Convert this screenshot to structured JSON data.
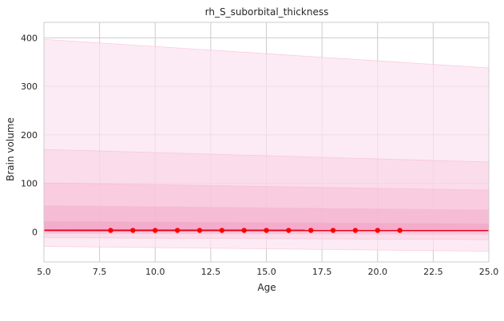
{
  "chart_data": {
    "type": "line",
    "title": "rh_S_suborbital_thickness",
    "xlabel": "Age",
    "ylabel": "Brain volume",
    "xlim": [
      5,
      25
    ],
    "ylim": [
      -62,
      432
    ],
    "grid": true,
    "legend": "none",
    "x_ticks": [
      5.0,
      7.5,
      10.0,
      12.5,
      15.0,
      17.5,
      20.0,
      22.5,
      25.0
    ],
    "x_tick_labels": [
      "5.0",
      "7.5",
      "10.0",
      "12.5",
      "15.0",
      "17.5",
      "20.0",
      "22.5",
      "25.0"
    ],
    "y_ticks": [
      0,
      100,
      200,
      300,
      400
    ],
    "y_tick_labels": [
      "0",
      "100",
      "200",
      "300",
      "400"
    ],
    "bands": [
      {
        "x": [
          5,
          25
        ],
        "lower": [
          -30,
          -40
        ],
        "upper": [
          397,
          338
        ],
        "color": "#fbe3ef",
        "opacity": 0.7
      },
      {
        "x": [
          5,
          25
        ],
        "lower": [
          -12,
          -16
        ],
        "upper": [
          170,
          144
        ],
        "color": "#f9cfe2",
        "opacity": 0.55
      },
      {
        "x": [
          5,
          25
        ],
        "lower": [
          -3,
          -5
        ],
        "upper": [
          101,
          86
        ],
        "color": "#f6b9d3",
        "opacity": 0.45
      },
      {
        "x": [
          5,
          25
        ],
        "lower": [
          0,
          0
        ],
        "upper": [
          54,
          45
        ],
        "color": "#f3a5c6",
        "opacity": 0.4
      },
      {
        "x": [
          5,
          25
        ],
        "lower": [
          1,
          1
        ],
        "upper": [
          22,
          17
        ],
        "color": "#ef8fb7",
        "opacity": 0.35
      }
    ],
    "series": [
      {
        "type": "line",
        "color": "#e8001c",
        "x": [
          5,
          25
        ],
        "y": [
          3.2,
          3.0
        ]
      },
      {
        "type": "scatter",
        "color": "#ff0000",
        "x": [
          8,
          9,
          10,
          11,
          12,
          13,
          14,
          15,
          16,
          17,
          18,
          19,
          20,
          21
        ],
        "y": [
          3,
          3,
          3,
          3,
          3,
          3,
          3,
          3,
          3,
          3,
          3,
          3,
          3,
          3
        ]
      }
    ]
  }
}
